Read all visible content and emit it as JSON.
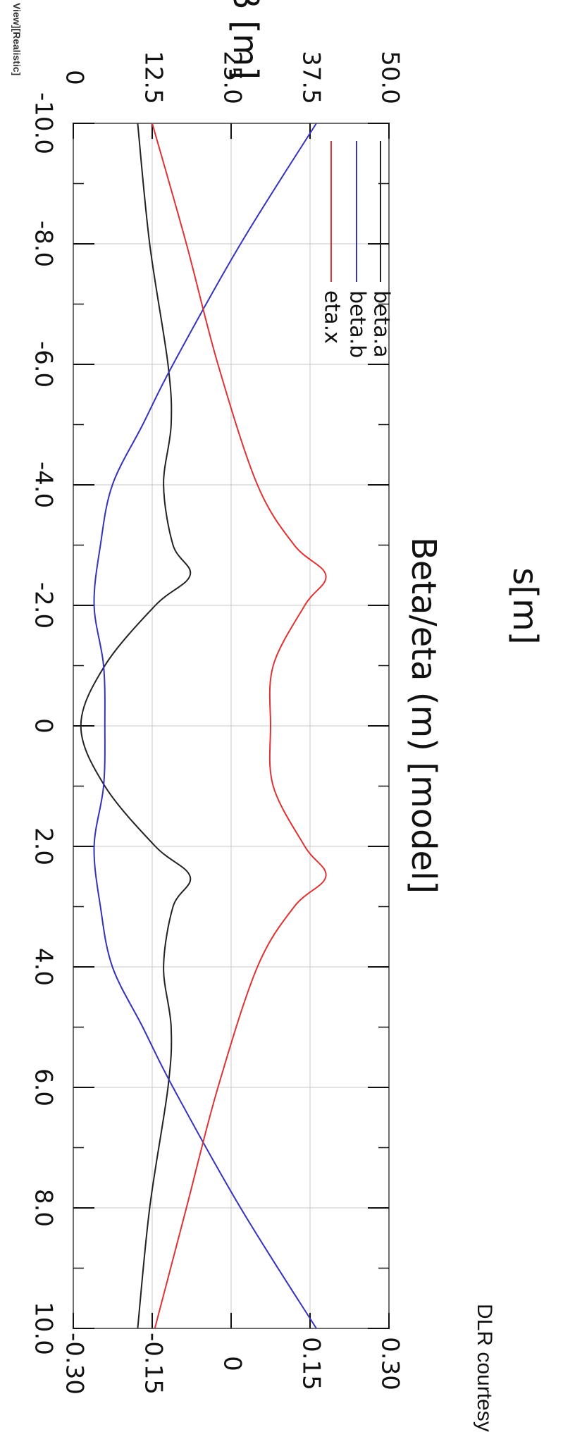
{
  "header": {
    "strip_text": "View][Realistic]"
  },
  "watermark": {
    "text": "DLR courtesy"
  },
  "chart_data": {
    "type": "line",
    "title": "Beta/eta (m) [model]",
    "xlabel": "s[m]",
    "ylabel_left": "β [m]",
    "xlim": [
      -10.0,
      10.0
    ],
    "ylim_left": [
      0,
      50.0
    ],
    "ylim_right": [
      -0.3,
      0.3
    ],
    "x_ticks": [
      "-10.0",
      "-8.0",
      "-6.0",
      "-4.0",
      "-2.0",
      "0",
      "2.0",
      "4.0",
      "6.0",
      "8.0",
      "10.0"
    ],
    "y_ticks_left": [
      "0",
      "12.5",
      "25.0",
      "37.5",
      "50.0"
    ],
    "y_ticks_right": [
      "-0.30",
      "-0.15",
      "0",
      "0.15",
      "0.30"
    ],
    "grid": true,
    "legend_position": "top-left",
    "orientation": "rotated-90-clockwise",
    "series": [
      {
        "name": "beta.a",
        "color": "#222222",
        "axis": "left",
        "x": [
          -10,
          -8,
          -6,
          -5,
          -4,
          -3,
          -2.5,
          -2,
          -1,
          0,
          1,
          2,
          2.5,
          3,
          4,
          5,
          6,
          8,
          10
        ],
        "y": [
          10.2,
          12.1,
          15.0,
          15.5,
          14.3,
          15.8,
          18.5,
          13.0,
          5.0,
          1.2,
          5.0,
          13.0,
          18.5,
          15.8,
          14.3,
          15.5,
          15.0,
          12.1,
          10.2
        ]
      },
      {
        "name": "beta.b",
        "color": "#3333bb",
        "axis": "left",
        "x": [
          -10,
          -8,
          -6,
          -5,
          -4,
          -3,
          -2,
          -1,
          0,
          1,
          2,
          3,
          4,
          5,
          6,
          8,
          10
        ],
        "y": [
          38.5,
          26.5,
          15.8,
          11.0,
          6.2,
          4.3,
          3.3,
          4.8,
          5.0,
          4.8,
          3.3,
          4.3,
          6.2,
          11.0,
          15.8,
          26.5,
          38.5
        ]
      },
      {
        "name": "eta.x",
        "color": "#dd3333",
        "axis": "right",
        "x": [
          -10,
          -8,
          -6,
          -4,
          -3,
          -2.5,
          -2,
          -1,
          0,
          1,
          2,
          2.5,
          3,
          4,
          6,
          8,
          10
        ],
        "y": [
          -0.15,
          -0.085,
          -0.025,
          0.05,
          0.12,
          0.18,
          0.14,
          0.08,
          0.075,
          0.08,
          0.14,
          0.18,
          0.12,
          0.05,
          -0.025,
          -0.085,
          -0.145
        ]
      }
    ]
  }
}
